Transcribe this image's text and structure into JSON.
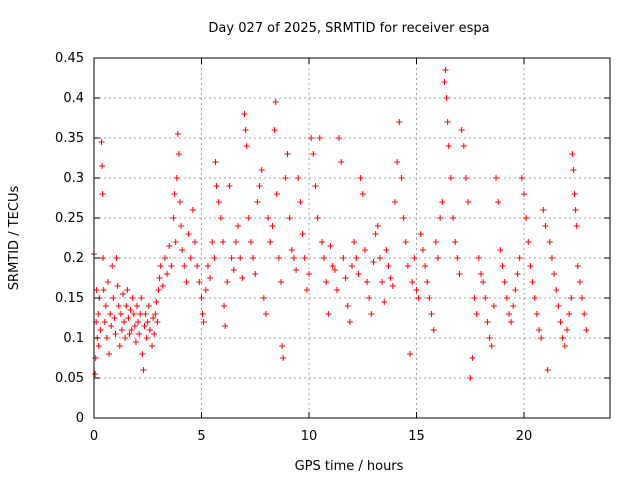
{
  "chart_data": {
    "type": "scatter",
    "title": "Day 027 of 2025, SRMTID for receiver espa",
    "xlabel": "GPS time / hours",
    "ylabel": "SRMTID / TECUs",
    "xlim": [
      0,
      24
    ],
    "ylim": [
      0,
      0.45
    ],
    "grid": true,
    "marker": "+",
    "color": "#ff0000",
    "x_ticks": [
      0,
      5,
      10,
      15,
      20
    ],
    "x_tick_labels": [
      "0",
      "5",
      "10",
      "15",
      "20"
    ],
    "y_ticks": [
      0,
      0.05,
      0.1,
      0.15,
      0.2,
      0.25,
      0.3,
      0.35,
      0.4,
      0.45
    ],
    "y_tick_labels": [
      "0",
      "0.05",
      "0.1",
      "0.15",
      "0.2",
      "0.25",
      "0.3",
      "0.35",
      "0.4",
      "0.45"
    ],
    "series": [
      {
        "name": "SRMTID",
        "points": [
          [
            0.0,
            0.205
          ],
          [
            0.05,
            0.055
          ],
          [
            0.08,
            0.075
          ],
          [
            0.1,
            0.12
          ],
          [
            0.12,
            0.16
          ],
          [
            0.15,
            0.1
          ],
          [
            0.2,
            0.13
          ],
          [
            0.22,
            0.09
          ],
          [
            0.25,
            0.15
          ],
          [
            0.3,
            0.11
          ],
          [
            0.35,
            0.345
          ],
          [
            0.38,
            0.315
          ],
          [
            0.4,
            0.28
          ],
          [
            0.42,
            0.2
          ],
          [
            0.45,
            0.16
          ],
          [
            0.5,
            0.12
          ],
          [
            0.55,
            0.14
          ],
          [
            0.6,
            0.1
          ],
          [
            0.65,
            0.17
          ],
          [
            0.7,
            0.08
          ],
          [
            0.75,
            0.13
          ],
          [
            0.8,
            0.115
          ],
          [
            0.85,
            0.19
          ],
          [
            0.9,
            0.15
          ],
          [
            0.95,
            0.125
          ],
          [
            1.0,
            0.105
          ],
          [
            1.05,
            0.2
          ],
          [
            1.1,
            0.165
          ],
          [
            1.15,
            0.14
          ],
          [
            1.2,
            0.09
          ],
          [
            1.25,
            0.13
          ],
          [
            1.3,
            0.11
          ],
          [
            1.35,
            0.155
          ],
          [
            1.4,
            0.12
          ],
          [
            1.45,
            0.1
          ],
          [
            1.5,
            0.14
          ],
          [
            1.55,
            0.16
          ],
          [
            1.6,
            0.125
          ],
          [
            1.65,
            0.105
          ],
          [
            1.7,
            0.135
          ],
          [
            1.75,
            0.11
          ],
          [
            1.8,
            0.15
          ],
          [
            1.85,
            0.13
          ],
          [
            1.9,
            0.115
          ],
          [
            1.95,
            0.095
          ],
          [
            2.0,
            0.14
          ],
          [
            2.05,
            0.12
          ],
          [
            2.1,
            0.105
          ],
          [
            2.15,
            0.13
          ],
          [
            2.2,
            0.15
          ],
          [
            2.25,
            0.08
          ],
          [
            2.3,
            0.06
          ],
          [
            2.35,
            0.115
          ],
          [
            2.4,
            0.13
          ],
          [
            2.45,
            0.1
          ],
          [
            2.5,
            0.12
          ],
          [
            2.55,
            0.14
          ],
          [
            2.6,
            0.11
          ],
          [
            2.7,
            0.09
          ],
          [
            2.75,
            0.125
          ],
          [
            2.8,
            0.105
          ],
          [
            2.85,
            0.13
          ],
          [
            2.9,
            0.145
          ],
          [
            2.95,
            0.12
          ],
          [
            3.0,
            0.16
          ],
          [
            3.05,
            0.175
          ],
          [
            3.1,
            0.19
          ],
          [
            3.2,
            0.165
          ],
          [
            3.3,
            0.2
          ],
          [
            3.4,
            0.18
          ],
          [
            3.5,
            0.215
          ],
          [
            3.6,
            0.19
          ],
          [
            3.7,
            0.25
          ],
          [
            3.75,
            0.28
          ],
          [
            3.8,
            0.22
          ],
          [
            3.85,
            0.3
          ],
          [
            3.9,
            0.355
          ],
          [
            3.95,
            0.33
          ],
          [
            4.0,
            0.27
          ],
          [
            4.05,
            0.24
          ],
          [
            4.1,
            0.21
          ],
          [
            4.2,
            0.19
          ],
          [
            4.3,
            0.17
          ],
          [
            4.4,
            0.23
          ],
          [
            4.5,
            0.2
          ],
          [
            4.6,
            0.26
          ],
          [
            4.7,
            0.22
          ],
          [
            4.8,
            0.19
          ],
          [
            4.9,
            0.17
          ],
          [
            5.0,
            0.15
          ],
          [
            5.05,
            0.13
          ],
          [
            5.1,
            0.12
          ],
          [
            5.2,
            0.16
          ],
          [
            5.3,
            0.19
          ],
          [
            5.4,
            0.175
          ],
          [
            5.5,
            0.22
          ],
          [
            5.6,
            0.2
          ],
          [
            5.65,
            0.32
          ],
          [
            5.7,
            0.29
          ],
          [
            5.8,
            0.27
          ],
          [
            5.9,
            0.25
          ],
          [
            6.0,
            0.22
          ],
          [
            6.05,
            0.14
          ],
          [
            6.1,
            0.115
          ],
          [
            6.2,
            0.17
          ],
          [
            6.3,
            0.29
          ],
          [
            6.4,
            0.2
          ],
          [
            6.5,
            0.185
          ],
          [
            6.6,
            0.22
          ],
          [
            6.7,
            0.24
          ],
          [
            6.8,
            0.2
          ],
          [
            6.9,
            0.175
          ],
          [
            7.0,
            0.38
          ],
          [
            7.05,
            0.36
          ],
          [
            7.1,
            0.34
          ],
          [
            7.2,
            0.25
          ],
          [
            7.3,
            0.22
          ],
          [
            7.4,
            0.2
          ],
          [
            7.5,
            0.18
          ],
          [
            7.6,
            0.27
          ],
          [
            7.7,
            0.29
          ],
          [
            7.8,
            0.31
          ],
          [
            7.9,
            0.15
          ],
          [
            8.0,
            0.13
          ],
          [
            8.1,
            0.25
          ],
          [
            8.2,
            0.22
          ],
          [
            8.3,
            0.24
          ],
          [
            8.4,
            0.36
          ],
          [
            8.45,
            0.395
          ],
          [
            8.5,
            0.28
          ],
          [
            8.6,
            0.2
          ],
          [
            8.7,
            0.17
          ],
          [
            8.75,
            0.09
          ],
          [
            8.8,
            0.075
          ],
          [
            8.9,
            0.3
          ],
          [
            9.0,
            0.33
          ],
          [
            9.1,
            0.25
          ],
          [
            9.2,
            0.21
          ],
          [
            9.3,
            0.2
          ],
          [
            9.4,
            0.185
          ],
          [
            9.5,
            0.3
          ],
          [
            9.6,
            0.27
          ],
          [
            9.7,
            0.23
          ],
          [
            9.8,
            0.2
          ],
          [
            9.9,
            0.16
          ],
          [
            10.0,
            0.18
          ],
          [
            10.1,
            0.35
          ],
          [
            10.2,
            0.33
          ],
          [
            10.3,
            0.29
          ],
          [
            10.4,
            0.25
          ],
          [
            10.5,
            0.35
          ],
          [
            10.6,
            0.22
          ],
          [
            10.7,
            0.2
          ],
          [
            10.8,
            0.17
          ],
          [
            10.9,
            0.13
          ],
          [
            11.0,
            0.215
          ],
          [
            11.1,
            0.19
          ],
          [
            11.2,
            0.185
          ],
          [
            11.3,
            0.16
          ],
          [
            11.4,
            0.35
          ],
          [
            11.5,
            0.32
          ],
          [
            11.6,
            0.2
          ],
          [
            11.7,
            0.175
          ],
          [
            11.8,
            0.14
          ],
          [
            11.9,
            0.12
          ],
          [
            12.0,
            0.19
          ],
          [
            12.1,
            0.22
          ],
          [
            12.2,
            0.2
          ],
          [
            12.3,
            0.18
          ],
          [
            12.4,
            0.3
          ],
          [
            12.5,
            0.28
          ],
          [
            12.6,
            0.21
          ],
          [
            12.7,
            0.17
          ],
          [
            12.8,
            0.15
          ],
          [
            12.9,
            0.13
          ],
          [
            13.0,
            0.195
          ],
          [
            13.1,
            0.23
          ],
          [
            13.2,
            0.24
          ],
          [
            13.3,
            0.2
          ],
          [
            13.4,
            0.17
          ],
          [
            13.5,
            0.145
          ],
          [
            13.6,
            0.21
          ],
          [
            13.7,
            0.19
          ],
          [
            13.8,
            0.175
          ],
          [
            13.9,
            0.165
          ],
          [
            14.0,
            0.27
          ],
          [
            14.1,
            0.32
          ],
          [
            14.2,
            0.37
          ],
          [
            14.3,
            0.3
          ],
          [
            14.4,
            0.25
          ],
          [
            14.5,
            0.22
          ],
          [
            14.6,
            0.19
          ],
          [
            14.7,
            0.08
          ],
          [
            14.8,
            0.17
          ],
          [
            14.9,
            0.2
          ],
          [
            15.0,
            0.16
          ],
          [
            15.1,
            0.15
          ],
          [
            15.2,
            0.23
          ],
          [
            15.3,
            0.21
          ],
          [
            15.4,
            0.19
          ],
          [
            15.5,
            0.17
          ],
          [
            15.6,
            0.15
          ],
          [
            15.7,
            0.13
          ],
          [
            15.8,
            0.11
          ],
          [
            15.9,
            0.22
          ],
          [
            16.0,
            0.2
          ],
          [
            16.1,
            0.25
          ],
          [
            16.2,
            0.27
          ],
          [
            16.3,
            0.42
          ],
          [
            16.35,
            0.435
          ],
          [
            16.4,
            0.4
          ],
          [
            16.45,
            0.37
          ],
          [
            16.5,
            0.34
          ],
          [
            16.6,
            0.3
          ],
          [
            16.7,
            0.25
          ],
          [
            16.8,
            0.22
          ],
          [
            16.9,
            0.2
          ],
          [
            17.0,
            0.18
          ],
          [
            17.1,
            0.36
          ],
          [
            17.2,
            0.34
          ],
          [
            17.3,
            0.3
          ],
          [
            17.4,
            0.27
          ],
          [
            17.5,
            0.05
          ],
          [
            17.6,
            0.075
          ],
          [
            17.7,
            0.15
          ],
          [
            17.8,
            0.13
          ],
          [
            17.9,
            0.2
          ],
          [
            18.0,
            0.18
          ],
          [
            18.1,
            0.17
          ],
          [
            18.2,
            0.15
          ],
          [
            18.3,
            0.12
          ],
          [
            18.4,
            0.1
          ],
          [
            18.5,
            0.09
          ],
          [
            18.6,
            0.14
          ],
          [
            18.7,
            0.3
          ],
          [
            18.8,
            0.27
          ],
          [
            18.9,
            0.21
          ],
          [
            19.0,
            0.19
          ],
          [
            19.1,
            0.17
          ],
          [
            19.2,
            0.15
          ],
          [
            19.3,
            0.13
          ],
          [
            19.4,
            0.12
          ],
          [
            19.5,
            0.14
          ],
          [
            19.6,
            0.16
          ],
          [
            19.7,
            0.18
          ],
          [
            19.8,
            0.2
          ],
          [
            19.9,
            0.3
          ],
          [
            20.0,
            0.28
          ],
          [
            20.1,
            0.25
          ],
          [
            20.2,
            0.22
          ],
          [
            20.3,
            0.19
          ],
          [
            20.4,
            0.17
          ],
          [
            20.5,
            0.15
          ],
          [
            20.6,
            0.13
          ],
          [
            20.7,
            0.11
          ],
          [
            20.8,
            0.1
          ],
          [
            20.9,
            0.26
          ],
          [
            21.0,
            0.24
          ],
          [
            21.1,
            0.06
          ],
          [
            21.2,
            0.22
          ],
          [
            21.3,
            0.2
          ],
          [
            21.4,
            0.18
          ],
          [
            21.5,
            0.16
          ],
          [
            21.6,
            0.14
          ],
          [
            21.7,
            0.12
          ],
          [
            21.8,
            0.1
          ],
          [
            21.9,
            0.09
          ],
          [
            22.0,
            0.11
          ],
          [
            22.1,
            0.13
          ],
          [
            22.2,
            0.15
          ],
          [
            22.25,
            0.33
          ],
          [
            22.3,
            0.31
          ],
          [
            22.35,
            0.28
          ],
          [
            22.4,
            0.26
          ],
          [
            22.45,
            0.24
          ],
          [
            22.5,
            0.19
          ],
          [
            22.6,
            0.17
          ],
          [
            22.7,
            0.15
          ],
          [
            22.8,
            0.13
          ],
          [
            22.9,
            0.11
          ]
        ]
      }
    ]
  }
}
